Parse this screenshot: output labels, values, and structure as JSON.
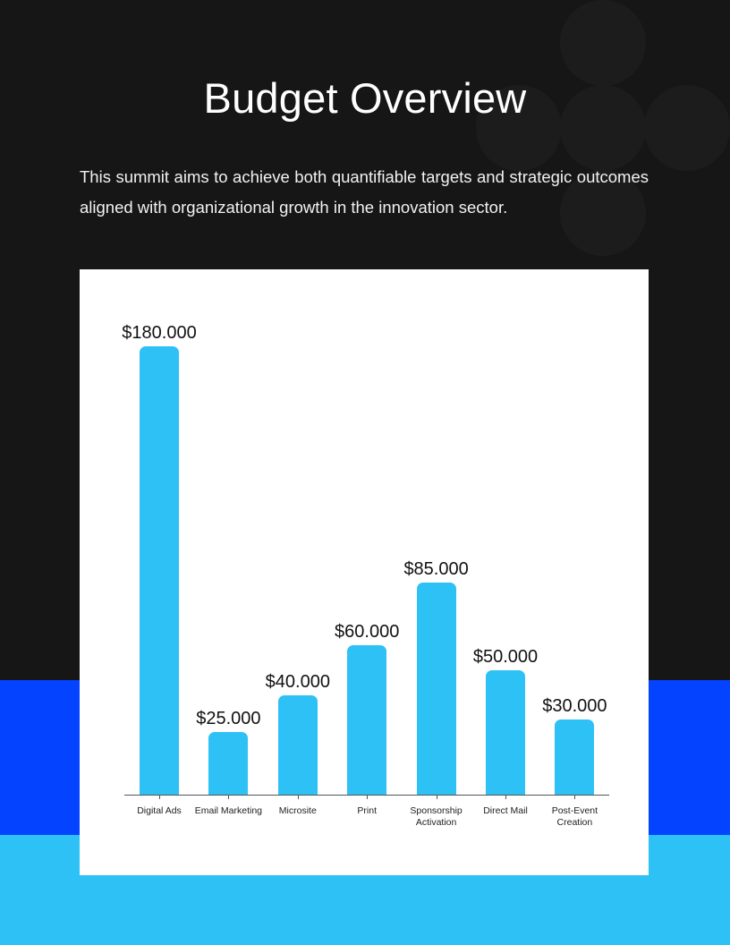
{
  "header": {
    "title": "Budget Overview",
    "intro": "This summit aims to achieve both quantifiable targets and strategic outcomes aligned with organizational growth in the innovation sector."
  },
  "colors": {
    "background_dark": "#161616",
    "band_blue": "#0443FF",
    "band_light_blue": "#2EC1F5",
    "bar": "#2EC1F5",
    "card": "#FFFFFF",
    "decor_circle": "#1C1C1C"
  },
  "chart_data": {
    "type": "bar",
    "title": "",
    "xlabel": "",
    "ylabel": "",
    "categories": [
      "Digital Ads",
      "Email Marketing",
      "Microsite",
      "Print",
      "Sponsorship Activation",
      "Direct Mail",
      "Post-Event Creation"
    ],
    "values": [
      180000,
      25000,
      40000,
      60000,
      85000,
      50000,
      30000
    ],
    "value_labels": [
      "$180.000",
      "$25.000",
      "$40.000",
      "$60.000",
      "$85.000",
      "$50.000",
      "$30.000"
    ],
    "ylim": [
      0,
      180000
    ],
    "grid": false,
    "legend": "none",
    "y_axis_visible": false
  },
  "chart": {
    "bars": [
      {
        "label_line1": "Digital Ads",
        "label_line2": "",
        "value_label": "$180.000"
      },
      {
        "label_line1": "Email Marketing",
        "label_line2": "",
        "value_label": "$25.000"
      },
      {
        "label_line1": "Microsite",
        "label_line2": "",
        "value_label": "$40.000"
      },
      {
        "label_line1": "Print",
        "label_line2": "",
        "value_label": "$60.000"
      },
      {
        "label_line1": "Sponsorship",
        "label_line2": "Activation",
        "value_label": "$85.000"
      },
      {
        "label_line1": "Direct Mail",
        "label_line2": "",
        "value_label": "$50.000"
      },
      {
        "label_line1": "Post-Event",
        "label_line2": "Creation",
        "value_label": "$30.000"
      }
    ]
  }
}
